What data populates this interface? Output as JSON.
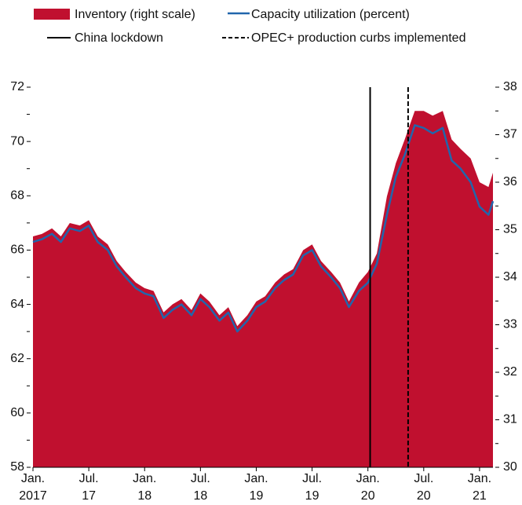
{
  "chart_data": {
    "type": "line",
    "x": [
      2017.0,
      2017.08,
      2017.17,
      2017.25,
      2017.33,
      2017.42,
      2017.5,
      2017.58,
      2017.67,
      2017.75,
      2017.83,
      2017.92,
      2018.0,
      2018.08,
      2018.17,
      2018.25,
      2018.33,
      2018.42,
      2018.5,
      2018.58,
      2018.67,
      2018.75,
      2018.83,
      2018.92,
      2019.0,
      2019.08,
      2019.17,
      2019.25,
      2019.33,
      2019.42,
      2019.5,
      2019.58,
      2019.67,
      2019.75,
      2019.83,
      2019.92,
      2020.0,
      2020.08,
      2020.17,
      2020.25,
      2020.33,
      2020.42,
      2020.5,
      2020.58,
      2020.67,
      2020.75,
      2020.83,
      2020.92,
      2021.0,
      2021.08,
      2021.12
    ],
    "series": [
      {
        "name": "Inventory (right scale)",
        "color": "#c0102f",
        "style": "area",
        "axis": "y2",
        "values": [
          34.86,
          34.91,
          35.03,
          34.86,
          35.14,
          35.09,
          35.2,
          34.86,
          34.69,
          34.34,
          34.11,
          33.89,
          33.77,
          33.71,
          33.26,
          33.43,
          33.54,
          33.31,
          33.66,
          33.49,
          33.2,
          33.37,
          32.97,
          33.2,
          33.49,
          33.6,
          33.89,
          34.06,
          34.17,
          34.57,
          34.69,
          34.34,
          34.11,
          33.89,
          33.49,
          33.89,
          34.11,
          34.5,
          35.7,
          36.4,
          36.9,
          37.5,
          37.5,
          37.4,
          37.5,
          36.9,
          36.7,
          36.5,
          36.0,
          35.9,
          36.2
        ]
      },
      {
        "name": "Capacity utilization (percent)",
        "color": "#2166ac",
        "style": "line",
        "values": [
          66.3,
          66.4,
          66.6,
          66.3,
          66.8,
          66.7,
          66.9,
          66.3,
          66.0,
          65.4,
          65.0,
          64.6,
          64.4,
          64.3,
          63.5,
          63.8,
          64.0,
          63.6,
          64.2,
          63.9,
          63.4,
          63.7,
          63.0,
          63.4,
          63.9,
          64.1,
          64.6,
          64.9,
          65.1,
          65.8,
          66.0,
          65.4,
          65.0,
          64.6,
          63.9,
          64.5,
          64.8,
          65.5,
          67.3,
          68.7,
          69.5,
          70.6,
          70.5,
          70.3,
          70.5,
          69.3,
          69.0,
          68.5,
          67.6,
          67.3,
          67.8
        ]
      }
    ],
    "vlines": [
      {
        "x": 2020.02,
        "label": "China lockdown",
        "style": "solid",
        "color": "#000000"
      },
      {
        "x": 2020.36,
        "label": "OPEC+ production curbs implemented",
        "style": "dashed",
        "color": "#000000"
      }
    ],
    "xlim": [
      2017,
      2021.12
    ],
    "xticks": [
      {
        "value": 2017,
        "label": "Jan.",
        "year": "2017"
      },
      {
        "value": 2017.5,
        "label": "Jul.",
        "year": "17"
      },
      {
        "value": 2018,
        "label": "Jan.",
        "year": "18"
      },
      {
        "value": 2018.5,
        "label": "Jul.",
        "year": "18"
      },
      {
        "value": 2019,
        "label": "Jan.",
        "year": "19"
      },
      {
        "value": 2019.5,
        "label": "Jul.",
        "year": "19"
      },
      {
        "value": 2020,
        "label": "Jan.",
        "year": "20"
      },
      {
        "value": 2020.5,
        "label": "Jul.",
        "year": "20"
      },
      {
        "value": 2021,
        "label": "Jan.",
        "year": "21"
      }
    ],
    "ylim": [
      58,
      72
    ],
    "yticks": [
      58,
      60,
      62,
      64,
      66,
      68,
      70,
      72
    ],
    "yminor": [
      59,
      61,
      63,
      65,
      67,
      69,
      71
    ],
    "y2lim": [
      30,
      38
    ],
    "y2ticks": [
      30,
      31,
      32,
      33,
      34,
      35,
      36,
      37,
      38
    ],
    "y2minor": [
      30.5,
      31.5,
      32.5,
      33.5,
      34.5,
      35.5,
      36.5,
      37.5
    ]
  }
}
